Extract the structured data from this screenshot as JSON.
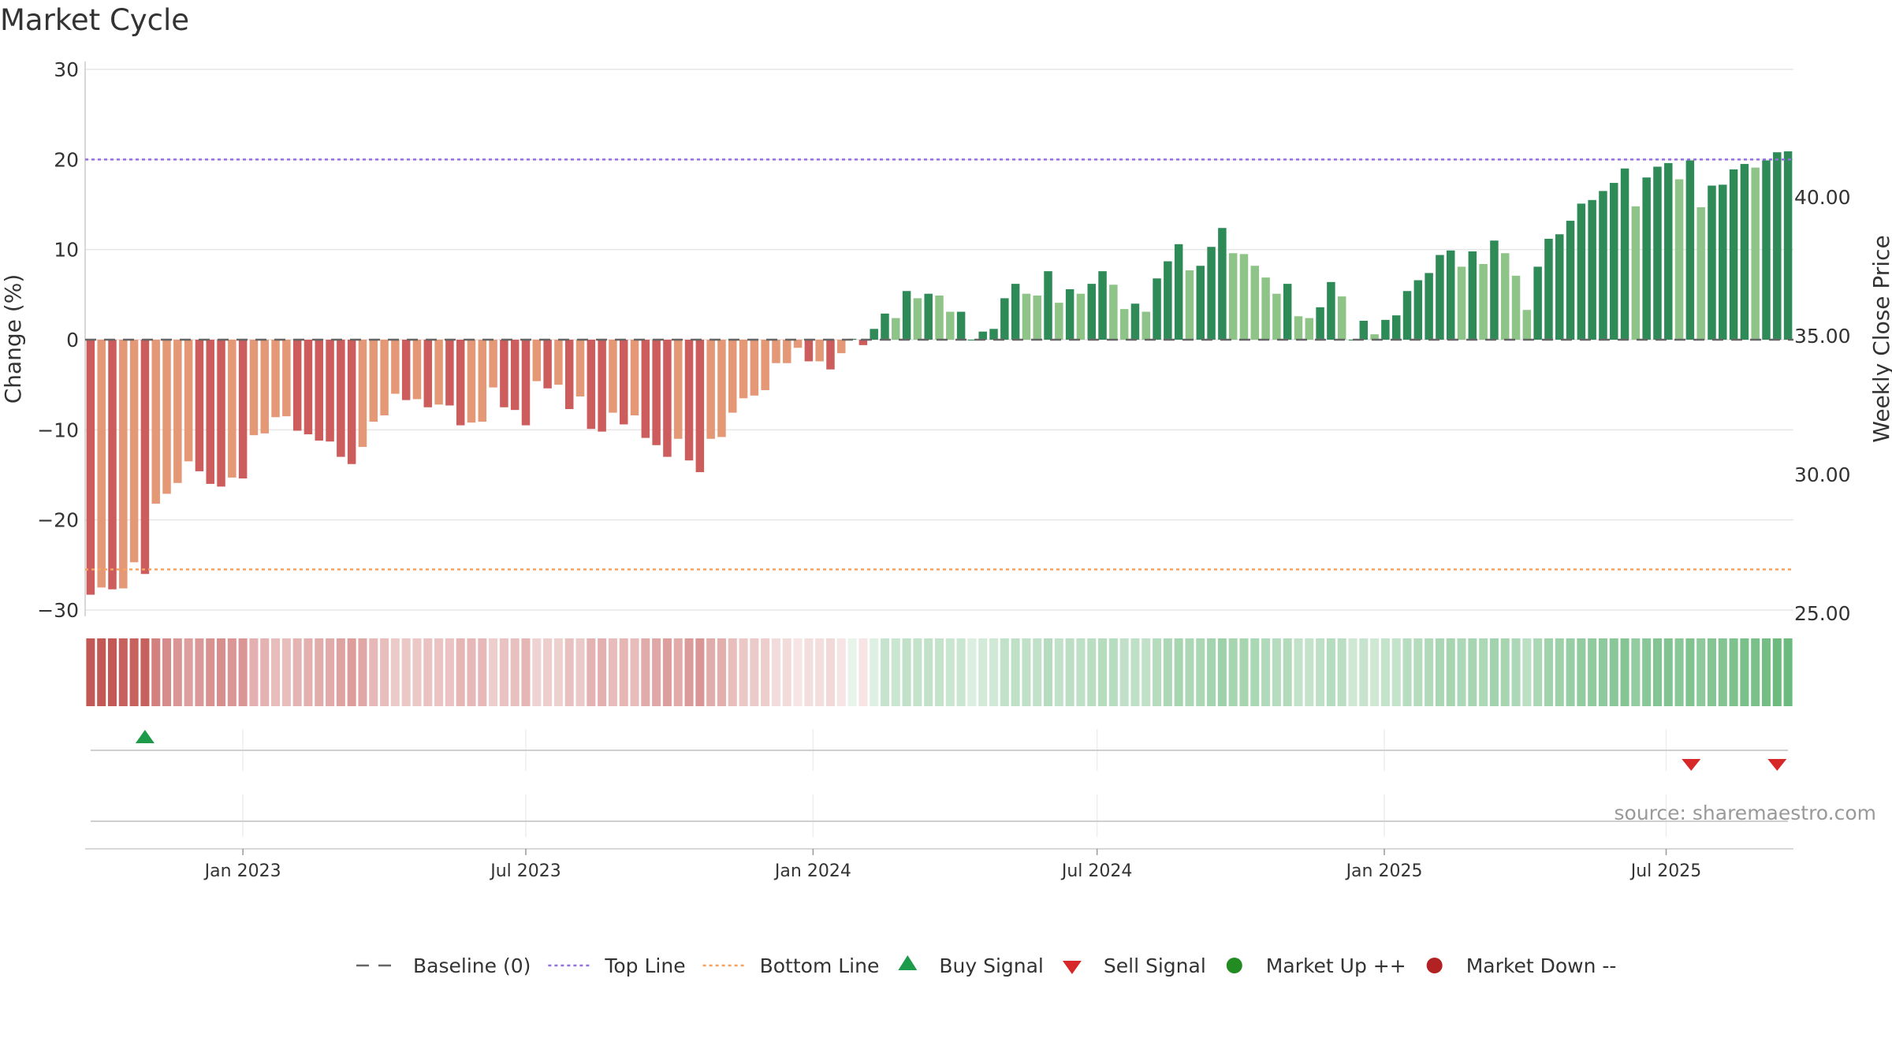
{
  "title": "Market Cycle",
  "source": "source: sharemaestro.com",
  "chart_data": {
    "type": "bar",
    "y_left": {
      "label": "Change (%)",
      "ylim": [
        -30,
        30
      ],
      "ticks": [
        30,
        20,
        10,
        0,
        -10,
        -20,
        -30
      ],
      "tick_labels": [
        "30",
        "20",
        "10",
        "0",
        "−10",
        "−20",
        "−30"
      ]
    },
    "y_right": {
      "label": "Weekly Close Price",
      "ticks": [
        40,
        35,
        30,
        25
      ],
      "tick_labels": [
        "40.00",
        "35.00",
        "30.00",
        "25.00"
      ]
    },
    "x_ticks": [
      {
        "label": "Jan 2023",
        "week": 14.5
      },
      {
        "label": "Jul 2023",
        "week": 40.5
      },
      {
        "label": "Jan 2024",
        "week": 66.9
      },
      {
        "label": "Jul 2024",
        "week": 93.0
      },
      {
        "label": "Jan 2025",
        "week": 119.4
      },
      {
        "label": "Jul 2025",
        "week": 145.3
      }
    ],
    "reference_lines": {
      "baseline": 0,
      "top_line": 20,
      "bottom_line": -25.5
    },
    "values": [
      -28.3,
      -27.5,
      -27.7,
      -27.6,
      -24.7,
      -26,
      -18.2,
      -17.1,
      -15.9,
      -13.5,
      -14.6,
      -16,
      -16.3,
      -15.3,
      -15.4,
      -10.6,
      -10.4,
      -8.6,
      -8.5,
      -10.1,
      -10.5,
      -11.2,
      -11.3,
      -13,
      -13.8,
      -11.9,
      -9.1,
      -8.4,
      -6,
      -6.7,
      -6.6,
      -7.5,
      -7.2,
      -7.3,
      -9.5,
      -9.2,
      -9.1,
      -5.3,
      -7.5,
      -7.8,
      -9.5,
      -4.6,
      -5.4,
      -5,
      -7.7,
      -6.3,
      -9.9,
      -10.2,
      -8.1,
      -9.4,
      -8.4,
      -10.9,
      -11.7,
      -13,
      -11,
      -13.4,
      -14.7,
      -11,
      -10.8,
      -8.1,
      -6.5,
      -6.2,
      -5.6,
      -2.6,
      -2.6,
      -0.9,
      -2.4,
      -2.4,
      -3.3,
      -1.5,
      0.1,
      -0.6,
      1.2,
      2.9,
      2.4,
      5.4,
      4.6,
      5.1,
      4.9,
      3.1,
      3.1,
      0,
      0.9,
      1.2,
      4.6,
      6.2,
      5.1,
      4.9,
      7.6,
      4.1,
      5.6,
      5.1,
      6.2,
      7.6,
      6.1,
      3.4,
      4,
      3.1,
      6.8,
      8.7,
      10.6,
      7.7,
      8.2,
      10.3,
      12.4,
      9.6,
      9.5,
      8.2,
      6.9,
      5.1,
      6.2,
      2.6,
      2.4,
      3.6,
      6.4,
      4.8,
      0,
      2.1,
      0.6,
      2.2,
      2.7,
      5.4,
      6.6,
      7.4,
      9.4,
      9.9,
      8.1,
      9.8,
      8.4,
      11,
      9.6,
      7.1,
      3.3,
      8.1,
      11.2,
      11.7,
      13.2,
      15.1,
      15.5,
      16.5,
      17.4,
      19,
      14.8,
      18,
      19.2,
      19.6,
      17.8,
      19.9,
      14.7,
      17.1,
      17.2,
      18.9,
      19.5,
      19.1,
      19.9,
      20.8,
      20.9
    ],
    "bar_colors": [
      "#cd5c5c",
      "#e59876",
      "#cd5c5c",
      "#e59876",
      "#e59876",
      "#cd5c5c",
      "#e59876",
      "#e59876",
      "#e59876",
      "#e59876",
      "#cd5c5c",
      "#cd5c5c",
      "#cd5c5c",
      "#e59876",
      "#cd5c5c",
      "#e59876",
      "#e59876",
      "#e59876",
      "#e59876",
      "#cd5c5c",
      "#cd5c5c",
      "#cd5c5c",
      "#cd5c5c",
      "#cd5c5c",
      "#cd5c5c",
      "#e59876",
      "#e59876",
      "#e59876",
      "#e59876",
      "#cd5c5c",
      "#e59876",
      "#cd5c5c",
      "#e59876",
      "#cd5c5c",
      "#cd5c5c",
      "#e59876",
      "#e59876",
      "#e59876",
      "#cd5c5c",
      "#cd5c5c",
      "#cd5c5c",
      "#e59876",
      "#cd5c5c",
      "#e59876",
      "#cd5c5c",
      "#e59876",
      "#cd5c5c",
      "#cd5c5c",
      "#e59876",
      "#cd5c5c",
      "#e59876",
      "#cd5c5c",
      "#cd5c5c",
      "#cd5c5c",
      "#e59876",
      "#cd5c5c",
      "#cd5c5c",
      "#e59876",
      "#e59876",
      "#e59876",
      "#e59876",
      "#e59876",
      "#e59876",
      "#e59876",
      "#e59876",
      "#e59876",
      "#cd5c5c",
      "#e59876",
      "#cd5c5c",
      "#e59876",
      "#2e8b57",
      "#cd5c5c",
      "#2e8b57",
      "#2e8b57",
      "#8fc488",
      "#2e8b57",
      "#8fc488",
      "#2e8b57",
      "#8fc488",
      "#8fc488",
      "#2e8b57",
      "#2e8b57",
      "#2e8b57",
      "#2e8b57",
      "#2e8b57",
      "#2e8b57",
      "#8fc488",
      "#8fc488",
      "#2e8b57",
      "#8fc488",
      "#2e8b57",
      "#8fc488",
      "#2e8b57",
      "#2e8b57",
      "#8fc488",
      "#8fc488",
      "#2e8b57",
      "#8fc488",
      "#2e8b57",
      "#2e8b57",
      "#2e8b57",
      "#8fc488",
      "#2e8b57",
      "#2e8b57",
      "#2e8b57",
      "#8fc488",
      "#8fc488",
      "#8fc488",
      "#8fc488",
      "#8fc488",
      "#2e8b57",
      "#8fc488",
      "#8fc488",
      "#2e8b57",
      "#2e8b57",
      "#8fc488",
      "#2e8b57",
      "#2e8b57",
      "#8fc488",
      "#2e8b57",
      "#2e8b57",
      "#2e8b57",
      "#2e8b57",
      "#2e8b57",
      "#2e8b57",
      "#2e8b57",
      "#8fc488",
      "#2e8b57",
      "#8fc488",
      "#2e8b57",
      "#8fc488",
      "#8fc488",
      "#8fc488",
      "#2e8b57",
      "#2e8b57",
      "#2e8b57",
      "#2e8b57",
      "#2e8b57",
      "#2e8b57",
      "#2e8b57",
      "#2e8b57",
      "#2e8b57",
      "#8fc488",
      "#2e8b57",
      "#2e8b57",
      "#2e8b57",
      "#8fc488",
      "#2e8b57",
      "#8fc488",
      "#2e8b57",
      "#2e8b57",
      "#2e8b57",
      "#2e8b57",
      "#8fc488",
      "#2e8b57",
      "#2e8b57",
      "#2e8b57"
    ],
    "heat_strip": {
      "positive_color": "#5cb270",
      "negative_color": "#c0504d",
      "intensity": [
        0.95,
        0.95,
        0.95,
        0.9,
        0.9,
        0.9,
        0.72,
        0.66,
        0.6,
        0.55,
        0.58,
        0.62,
        0.64,
        0.6,
        0.6,
        0.45,
        0.44,
        0.38,
        0.37,
        0.43,
        0.45,
        0.47,
        0.48,
        0.53,
        0.56,
        0.5,
        0.4,
        0.37,
        0.3,
        0.32,
        0.32,
        0.35,
        0.34,
        0.34,
        0.42,
        0.41,
        0.4,
        0.28,
        0.35,
        0.36,
        0.42,
        0.25,
        0.28,
        0.27,
        0.36,
        0.31,
        0.44,
        0.45,
        0.38,
        0.42,
        0.38,
        0.48,
        0.5,
        0.55,
        0.48,
        0.57,
        0.6,
        0.47,
        0.46,
        0.37,
        0.32,
        0.3,
        0.28,
        0.2,
        0.2,
        0.15,
        0.19,
        0.19,
        0.22,
        0.15,
        0.15,
        0.15,
        0.2,
        0.35,
        0.33,
        0.38,
        0.36,
        0.38,
        0.37,
        0.33,
        0.33,
        0.22,
        0.28,
        0.29,
        0.38,
        0.4,
        0.39,
        0.38,
        0.45,
        0.38,
        0.41,
        0.4,
        0.43,
        0.46,
        0.44,
        0.39,
        0.4,
        0.39,
        0.46,
        0.5,
        0.55,
        0.5,
        0.52,
        0.56,
        0.6,
        0.55,
        0.55,
        0.52,
        0.48,
        0.45,
        0.47,
        0.38,
        0.37,
        0.4,
        0.46,
        0.43,
        0.3,
        0.35,
        0.3,
        0.36,
        0.37,
        0.44,
        0.46,
        0.48,
        0.53,
        0.55,
        0.5,
        0.54,
        0.51,
        0.57,
        0.55,
        0.5,
        0.42,
        0.52,
        0.58,
        0.6,
        0.63,
        0.67,
        0.68,
        0.7,
        0.72,
        0.75,
        0.66,
        0.73,
        0.76,
        0.77,
        0.73,
        0.78,
        0.7,
        0.75,
        0.76,
        0.8,
        0.82,
        0.82,
        0.85,
        0.9,
        0.9
      ]
    },
    "buy_signals": [
      5.5
    ],
    "sell_signals": [
      147.6,
      155.5
    ],
    "legend": [
      {
        "label": "Baseline (0)",
        "symbol": "dash",
        "color": "#666666"
      },
      {
        "label": "Top Line",
        "symbol": "dot",
        "color": "#9370db"
      },
      {
        "label": "Bottom Line",
        "symbol": "dot",
        "color": "#f4a460"
      },
      {
        "label": "Buy Signal",
        "symbol": "triangle-up",
        "color": "#1e9b4a"
      },
      {
        "label": "Sell Signal",
        "symbol": "triangle-down",
        "color": "#d62828"
      },
      {
        "label": "Market Up ++",
        "symbol": "circle",
        "color": "#228b22"
      },
      {
        "label": "Market Down --",
        "symbol": "circle",
        "color": "#b22222"
      }
    ],
    "colors": {
      "top_line": "#9370db",
      "bottom_line": "#f4a460",
      "baseline": "#666666"
    }
  }
}
